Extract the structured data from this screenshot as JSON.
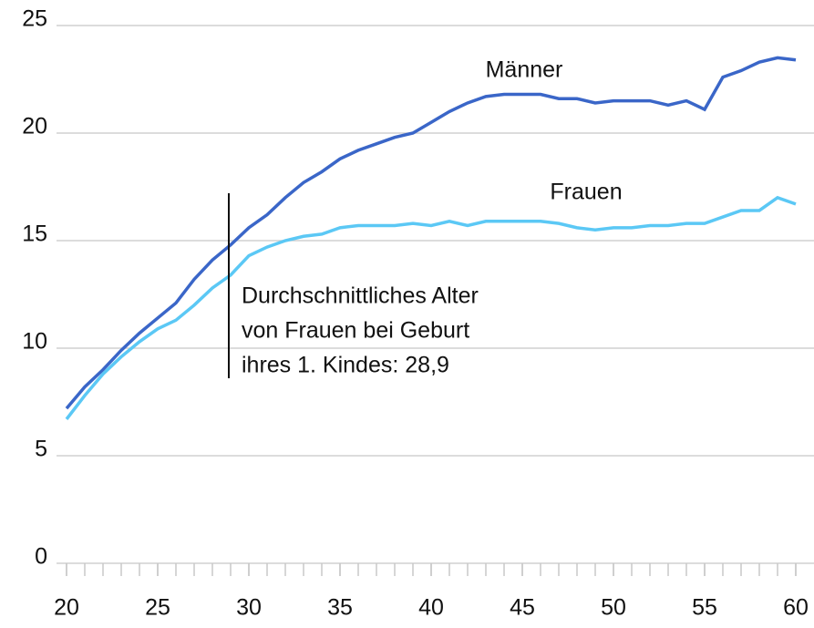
{
  "chart_data": {
    "type": "line",
    "x": [
      20,
      21,
      22,
      23,
      24,
      25,
      26,
      27,
      28,
      29,
      30,
      31,
      32,
      33,
      34,
      35,
      36,
      37,
      38,
      39,
      40,
      41,
      42,
      43,
      44,
      45,
      46,
      47,
      48,
      49,
      50,
      51,
      52,
      53,
      54,
      55,
      56,
      57,
      58,
      59,
      60
    ],
    "series": [
      {
        "name": "Männer",
        "color": "#3a66c8",
        "values": [
          7.2,
          8.2,
          9.0,
          9.9,
          10.7,
          11.4,
          12.1,
          13.2,
          14.1,
          14.8,
          15.6,
          16.2,
          17.0,
          17.7,
          18.2,
          18.8,
          19.2,
          19.5,
          19.8,
          20.0,
          20.5,
          21.0,
          21.4,
          21.7,
          21.8,
          21.8,
          21.8,
          21.6,
          21.6,
          21.4,
          21.5,
          21.5,
          21.5,
          21.3,
          21.5,
          21.1,
          22.6,
          22.9,
          23.3,
          23.5,
          23.4
        ]
      },
      {
        "name": "Frauen",
        "color": "#5bc8f5",
        "values": [
          6.7,
          7.8,
          8.8,
          9.6,
          10.3,
          10.9,
          11.3,
          12.0,
          12.8,
          13.4,
          14.3,
          14.7,
          15.0,
          15.2,
          15.3,
          15.6,
          15.7,
          15.7,
          15.7,
          15.8,
          15.7,
          15.9,
          15.7,
          15.9,
          15.9,
          15.9,
          15.9,
          15.8,
          15.6,
          15.5,
          15.6,
          15.6,
          15.7,
          15.7,
          15.8,
          15.8,
          16.1,
          16.4,
          16.4,
          17.0,
          16.7
        ]
      }
    ],
    "xlim": [
      20,
      60
    ],
    "xticks": [
      20,
      25,
      30,
      35,
      40,
      45,
      50,
      55,
      60
    ],
    "ylim": [
      0,
      25
    ],
    "yticks": [
      0,
      5,
      10,
      15,
      20,
      25
    ],
    "grid": true,
    "annotation": {
      "x": 28.9,
      "lines": [
        "Durchschnittliches Alter",
        "von Frauen bei Geburt",
        "ihres 1. Kindes: 28,9"
      ]
    }
  }
}
